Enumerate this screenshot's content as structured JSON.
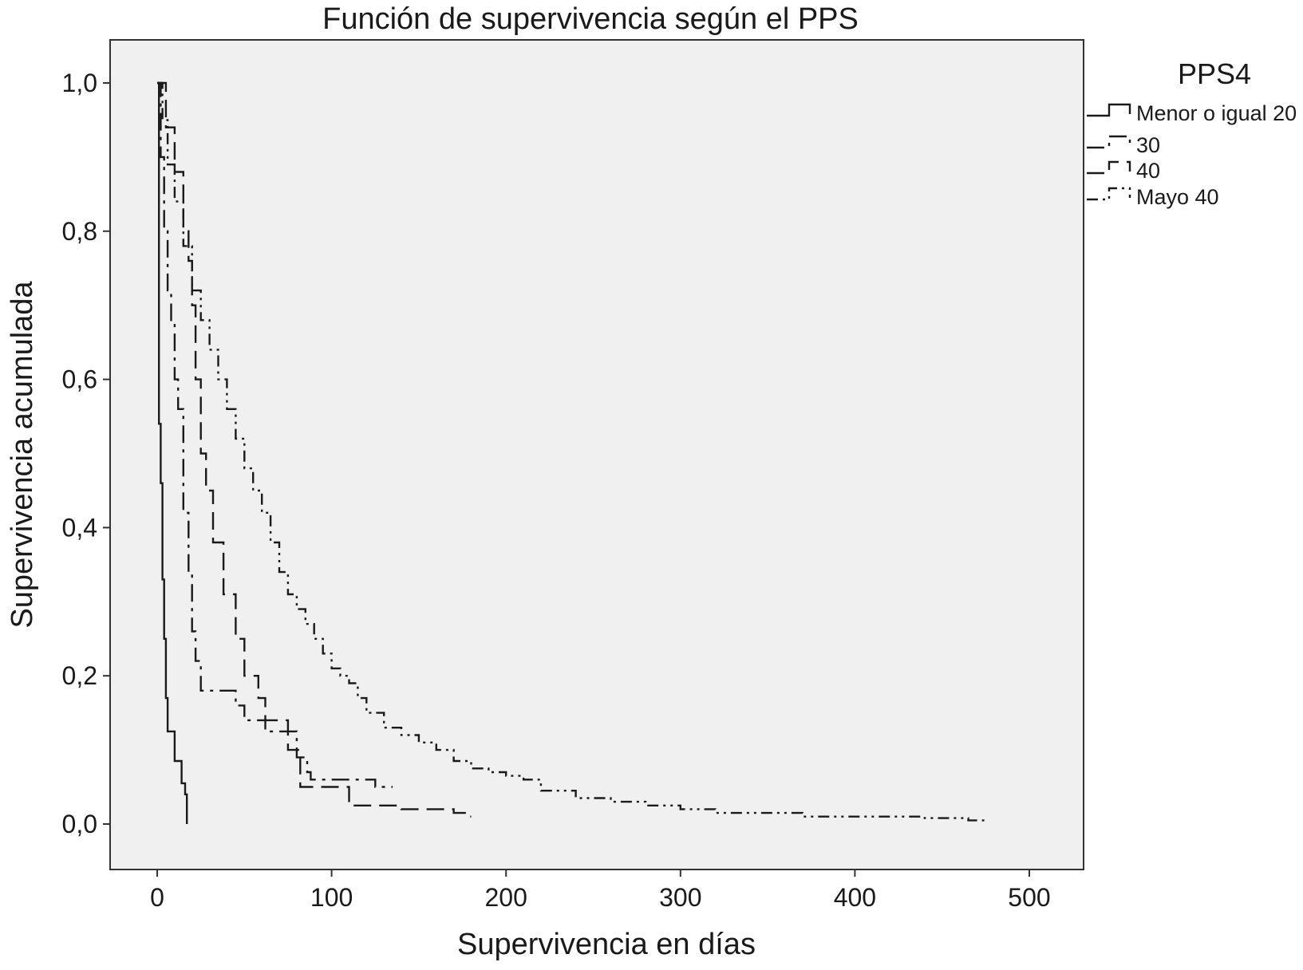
{
  "chart_data": {
    "type": "line",
    "title": "Función de supervivencia según el PPS",
    "xlabel": "Supervivencia en días",
    "ylabel": "Supervivencia acumulada",
    "xlim": [
      0,
      500
    ],
    "ylim": [
      0,
      1
    ],
    "x_ticks": [
      "0",
      "100",
      "200",
      "300",
      "400",
      "500"
    ],
    "y_ticks": [
      "0,0",
      "0,2",
      "0,4",
      "0,6",
      "0,8",
      "1,0"
    ],
    "grid": false,
    "legend": {
      "title": "PPS4",
      "position": "right-top"
    },
    "plot_background": "#f0f0f0",
    "series": [
      {
        "name": "Menor o igual 20",
        "style": "solid",
        "x": [
          0,
          1,
          1,
          2,
          2,
          3,
          3,
          4,
          4,
          5,
          5,
          6,
          6,
          10,
          10,
          14,
          14,
          16,
          16,
          17,
          17
        ],
        "y": [
          1.0,
          1.0,
          0.54,
          0.54,
          0.46,
          0.46,
          0.33,
          0.33,
          0.25,
          0.25,
          0.17,
          0.17,
          0.125,
          0.125,
          0.085,
          0.085,
          0.055,
          0.055,
          0.04,
          0.04,
          0.0
        ]
      },
      {
        "name": "30",
        "style": "dash-dot",
        "x": [
          0,
          2,
          2,
          4,
          4,
          6,
          6,
          8,
          8,
          10,
          10,
          12,
          12,
          15,
          15,
          18,
          18,
          20,
          20,
          22,
          22,
          25,
          25,
          45,
          45,
          50,
          50,
          62,
          62,
          80,
          80,
          86,
          86,
          88,
          88,
          125,
          125,
          135,
          135
        ],
        "y": [
          1.0,
          1.0,
          0.9,
          0.9,
          0.8,
          0.8,
          0.72,
          0.72,
          0.68,
          0.68,
          0.6,
          0.6,
          0.56,
          0.56,
          0.42,
          0.42,
          0.34,
          0.34,
          0.26,
          0.26,
          0.22,
          0.22,
          0.18,
          0.18,
          0.16,
          0.16,
          0.14,
          0.14,
          0.125,
          0.125,
          0.09,
          0.09,
          0.07,
          0.07,
          0.06,
          0.06,
          0.05,
          0.05,
          0.05
        ]
      },
      {
        "name": "40",
        "style": "dashed",
        "x": [
          0,
          5,
          5,
          10,
          10,
          15,
          15,
          18,
          18,
          20,
          20,
          22,
          22,
          25,
          25,
          28,
          28,
          32,
          32,
          38,
          38,
          45,
          45,
          50,
          50,
          58,
          58,
          62,
          62,
          75,
          75,
          82,
          82,
          110,
          110,
          140,
          140,
          155,
          155,
          170,
          170,
          178,
          178,
          180
        ],
        "y": [
          1.0,
          1.0,
          0.94,
          0.94,
          0.88,
          0.88,
          0.8,
          0.8,
          0.76,
          0.76,
          0.7,
          0.7,
          0.6,
          0.6,
          0.5,
          0.5,
          0.45,
          0.45,
          0.38,
          0.38,
          0.31,
          0.31,
          0.25,
          0.25,
          0.2,
          0.2,
          0.17,
          0.17,
          0.14,
          0.14,
          0.1,
          0.1,
          0.05,
          0.05,
          0.025,
          0.025,
          0.02,
          0.02,
          0.02,
          0.02,
          0.015,
          0.015,
          0.01,
          0.01
        ]
      },
      {
        "name": "Mayo 40",
        "style": "dash-dot-dot",
        "x": [
          0,
          3,
          3,
          6,
          6,
          10,
          10,
          15,
          15,
          20,
          20,
          25,
          25,
          30,
          30,
          35,
          35,
          40,
          40,
          45,
          45,
          50,
          50,
          55,
          55,
          60,
          60,
          65,
          65,
          70,
          70,
          75,
          75,
          80,
          80,
          85,
          85,
          90,
          90,
          95,
          95,
          100,
          100,
          105,
          105,
          110,
          110,
          115,
          115,
          120,
          120,
          130,
          130,
          140,
          140,
          150,
          150,
          160,
          160,
          170,
          170,
          180,
          180,
          190,
          190,
          200,
          200,
          210,
          210,
          220,
          220,
          240,
          240,
          260,
          260,
          280,
          280,
          300,
          300,
          320,
          320,
          370,
          370,
          440,
          440,
          465,
          465,
          475
        ],
        "y": [
          1.0,
          1.0,
          0.95,
          0.95,
          0.89,
          0.89,
          0.84,
          0.84,
          0.78,
          0.78,
          0.72,
          0.72,
          0.68,
          0.68,
          0.64,
          0.64,
          0.6,
          0.6,
          0.56,
          0.56,
          0.52,
          0.52,
          0.48,
          0.48,
          0.45,
          0.45,
          0.42,
          0.42,
          0.38,
          0.38,
          0.34,
          0.34,
          0.31,
          0.31,
          0.29,
          0.29,
          0.27,
          0.27,
          0.25,
          0.25,
          0.23,
          0.23,
          0.21,
          0.21,
          0.2,
          0.2,
          0.19,
          0.19,
          0.17,
          0.17,
          0.15,
          0.15,
          0.13,
          0.13,
          0.12,
          0.12,
          0.11,
          0.11,
          0.1,
          0.1,
          0.085,
          0.085,
          0.075,
          0.075,
          0.07,
          0.07,
          0.065,
          0.065,
          0.06,
          0.06,
          0.045,
          0.045,
          0.035,
          0.035,
          0.03,
          0.03,
          0.025,
          0.025,
          0.02,
          0.02,
          0.015,
          0.015,
          0.01,
          0.01,
          0.008,
          0.008,
          0.005,
          0.005
        ]
      }
    ]
  }
}
